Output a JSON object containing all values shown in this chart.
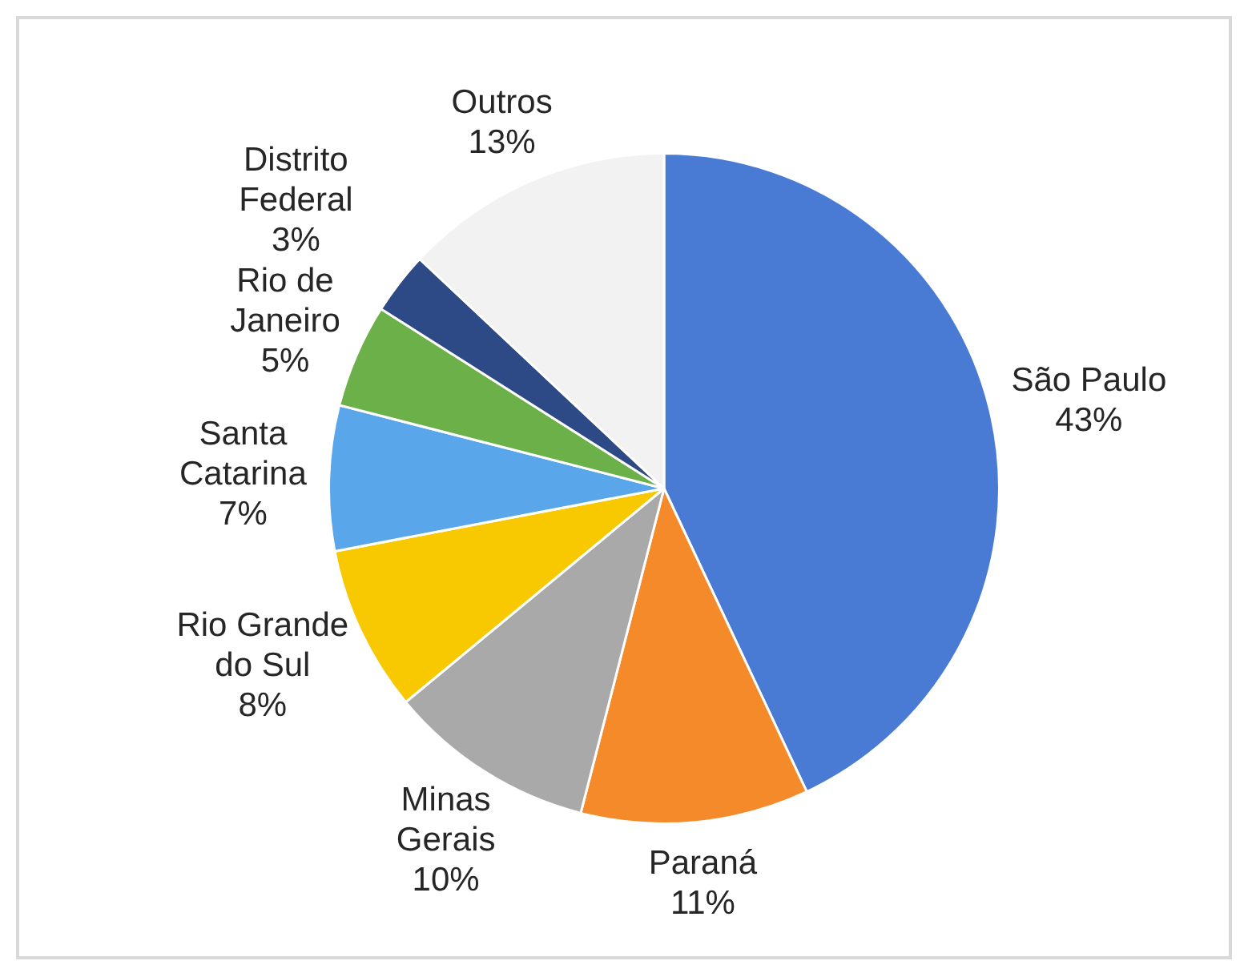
{
  "chart_data": {
    "type": "pie",
    "categories": [
      "São Paulo",
      "Paraná",
      "Minas Gerais",
      "Rio Grande do Sul",
      "Santa Catarina",
      "Rio de Janeiro",
      "Distrito Federal",
      "Outros"
    ],
    "values": [
      43,
      11,
      10,
      8,
      7,
      5,
      3,
      13
    ],
    "value_labels": [
      "43%",
      "11%",
      "10%",
      "8%",
      "7%",
      "5%",
      "3%",
      "13%"
    ],
    "colors": [
      "#4a7bd4",
      "#f58a2a",
      "#a9a9a9",
      "#f8c800",
      "#5aa6ea",
      "#6cb04a",
      "#2e4a86",
      "#f2f2f2"
    ],
    "legend": false
  }
}
